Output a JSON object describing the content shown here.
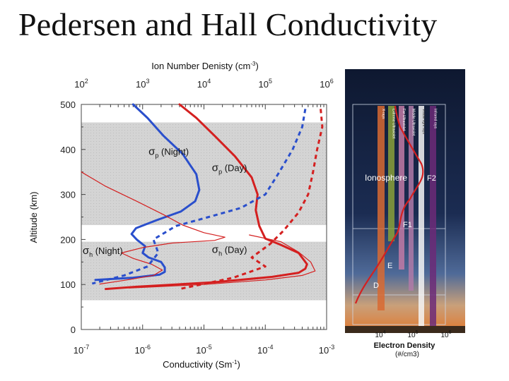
{
  "title": "Pedersen and Hall Conductivity",
  "chart_data": [
    {
      "type": "line",
      "name": "conductivity-profiles",
      "xlabel": "Conductivity (Sm-1)",
      "xlabel_main": "Conductivity (Sm",
      "xlabel_sup": "-1",
      "xlabel_end": ")",
      "xscale": "log",
      "xlim": [
        1e-07,
        0.001
      ],
      "x_ticks": [
        {
          "value": 1e-07,
          "base": "10",
          "exp": "-7"
        },
        {
          "value": 1e-06,
          "base": "10",
          "exp": "-6"
        },
        {
          "value": 1e-05,
          "base": "10",
          "exp": "-5"
        },
        {
          "value": 0.0001,
          "base": "10",
          "exp": "-4"
        },
        {
          "value": 0.001,
          "base": "10",
          "exp": "-3"
        }
      ],
      "top_axis": {
        "label_main": "Ion Number Denisty (cm",
        "label_sup": "-3",
        "label_end": ")",
        "xlim": [
          100,
          1000000
        ],
        "ticks": [
          {
            "value": 100,
            "base": "10",
            "exp": "2"
          },
          {
            "value": 1000,
            "base": "10",
            "exp": "3"
          },
          {
            "value": 10000,
            "base": "10",
            "exp": "4"
          },
          {
            "value": 100000,
            "base": "10",
            "exp": "5"
          },
          {
            "value": 1000000,
            "base": "10",
            "exp": "6"
          }
        ]
      },
      "ylabel": "Altitude (km)",
      "ylim": [
        0,
        500
      ],
      "y_ticks": [
        0,
        100,
        200,
        300,
        400,
        500
      ],
      "shaded_bands": [
        [
          65,
          195
        ],
        [
          232,
          460
        ]
      ],
      "series": [
        {
          "name": "sigma_p Night",
          "axis": "bottom",
          "color": "#2a4fcc",
          "style": "solid",
          "width": 3,
          "points": [
            [
              7e-07,
              500
            ],
            [
              1.2e-06,
              470
            ],
            [
              2.2e-06,
              430
            ],
            [
              4.5e-06,
              390
            ],
            [
              7.5e-06,
              345
            ],
            [
              8.4e-06,
              310
            ],
            [
              7.2e-06,
              285
            ],
            [
              4.2e-06,
              262
            ],
            [
              1.7e-06,
              243
            ],
            [
              7.8e-07,
              225
            ],
            [
              6.6e-07,
              212
            ],
            [
              8e-07,
              200
            ],
            [
              1.1e-06,
              185
            ],
            [
              1e-06,
              170
            ],
            [
              1.25e-06,
              160
            ],
            [
              2e-06,
              150
            ],
            [
              2.3e-06,
              138
            ],
            [
              2.3e-06,
              128
            ],
            [
              1.9e-06,
              122
            ],
            [
              7e-07,
              115
            ],
            [
              1.7e-07,
              110
            ]
          ]
        },
        {
          "name": "sigma_p Day",
          "axis": "bottom",
          "color": "#d42020",
          "style": "solid",
          "width": 3,
          "points": [
            [
              4e-06,
              500
            ],
            [
              7.5e-06,
              470
            ],
            [
              1.5e-05,
              430
            ],
            [
              3.2e-05,
              385
            ],
            [
              6e-05,
              338
            ],
            [
              7.5e-05,
              300
            ],
            [
              7e-05,
              265
            ],
            [
              8e-05,
              230
            ],
            [
              0.0001,
              202
            ],
            [
              0.00018,
              188
            ],
            [
              0.00035,
              170
            ],
            [
              0.00048,
              145
            ],
            [
              0.00045,
              135
            ],
            [
              0.00035,
              126
            ],
            [
              0.00013,
              117
            ],
            [
              1.5e-05,
              105
            ],
            [
              8e-07,
              95
            ],
            [
              2.5e-07,
              90
            ]
          ]
        },
        {
          "name": "sigma_h Night",
          "axis": "bottom",
          "color": "#d42020",
          "style": "thin",
          "width": 1.2,
          "points": [
            [
              1e-07,
              350
            ],
            [
              2.5e-07,
              318
            ],
            [
              8e-07,
              285
            ],
            [
              2.2e-06,
              255
            ],
            [
              4.5e-06,
              232
            ],
            [
              1e-05,
              215
            ],
            [
              2.2e-05,
              205
            ],
            [
              1.5e-05,
              198
            ],
            [
              3e-06,
              192
            ],
            [
              1e-06,
              182
            ],
            [
              4.5e-07,
              170
            ],
            [
              7e-07,
              158
            ],
            [
              1.4e-06,
              145
            ],
            [
              2.1e-06,
              132
            ],
            [
              1.5e-06,
              120
            ],
            [
              5.5e-07,
              110
            ],
            [
              2e-07,
              101
            ]
          ]
        },
        {
          "name": "sigma_h Day",
          "axis": "bottom",
          "color": "#d42020",
          "style": "thin",
          "width": 1.2,
          "points": [
            [
              5.5e-05,
              210
            ],
            [
              0.00018,
              195
            ],
            [
              0.00035,
              172
            ],
            [
              0.00055,
              150
            ],
            [
              0.00065,
              130
            ],
            [
              0.0004,
              120
            ],
            [
              0.0001,
              110
            ],
            [
              1e-05,
              100
            ],
            [
              6e-07,
              92
            ]
          ]
        },
        {
          "name": "Ion density Night",
          "axis": "top",
          "color": "#2a4fcc",
          "style": "dashed",
          "width": 3,
          "points": [
            [
              450000,
              490
            ],
            [
              400000,
              450
            ],
            [
              280000,
              400
            ],
            [
              170000,
              350
            ],
            [
              100000,
              300
            ],
            [
              40000,
              270
            ],
            [
              12000,
              250
            ],
            [
              3500,
              230
            ],
            [
              1500,
              200
            ],
            [
              1800,
              170
            ],
            [
              1200,
              140
            ],
            [
              500,
              120
            ],
            [
              150,
              102
            ]
          ]
        },
        {
          "name": "Ion density Day",
          "axis": "top",
          "color": "#d42020",
          "style": "dashed",
          "width": 3,
          "points": [
            [
              800000,
              490
            ],
            [
              850000,
              450
            ],
            [
              700000,
              400
            ],
            [
              600000,
              350
            ],
            [
              500000,
              300
            ],
            [
              350000,
              260
            ],
            [
              200000,
              220
            ],
            [
              120000,
              190
            ],
            [
              60000,
              160
            ],
            [
              100000,
              140
            ],
            [
              30000,
              115
            ],
            [
              4000,
              90
            ]
          ]
        }
      ],
      "annotations": [
        {
          "id": "sp-night",
          "greek": "σ",
          "sub": "p",
          "text": " (Night)",
          "at": [
            1.25e-06,
            388
          ]
        },
        {
          "id": "sp-day",
          "greek": "σ",
          "sub": "p",
          "text": " (Day)",
          "at": [
            1.35e-05,
            352
          ]
        },
        {
          "id": "sh-night",
          "greek": "σ",
          "sub": "h",
          "text": " (Night)",
          "at": [
            1.05e-07,
            168
          ]
        },
        {
          "id": "sh-day",
          "greek": "σ",
          "sub": "h",
          "text": " (Day)",
          "at": [
            1.35e-05,
            170
          ]
        }
      ]
    },
    {
      "type": "line",
      "name": "electron-density-ionosphere",
      "xlabel": "Electron Density",
      "xlabel_unit": "(#/cm3)",
      "xscale": "log",
      "x_ticks": [
        {
          "value": 10000,
          "base": "10",
          "exp": "4"
        },
        {
          "value": 100000,
          "base": "10",
          "exp": "5"
        },
        {
          "value": 1000000,
          "base": "10",
          "exp": "6"
        }
      ],
      "region_label": "Ionosphere",
      "layers": [
        "F2",
        "F1",
        "E",
        "D"
      ],
      "bands": [
        {
          "name": "X-rays",
          "color": "#d86a32"
        },
        {
          "name": "Extreme Ultraviolet",
          "color": "#8aa03a"
        },
        {
          "name": "Far Ultraviolet",
          "color": "#c27aa6"
        },
        {
          "name": "Middle Ultraviolet",
          "color": "#b07aa8"
        },
        {
          "name": "Visible light rays",
          "color": "#f4f4f4"
        },
        {
          "name": "Infrared rays",
          "color": "#6c2a78"
        }
      ]
    }
  ]
}
